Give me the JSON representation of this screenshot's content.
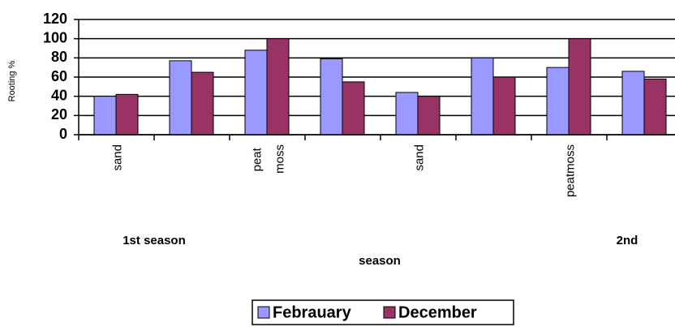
{
  "chart_data": {
    "type": "bar",
    "y_label": "Rooting %",
    "categories": [
      "sand",
      null,
      "peat moss",
      null,
      "sand",
      null,
      "peatmoss",
      null
    ],
    "series": [
      {
        "name": "Febrauary",
        "color": "#9999ff",
        "values": [
          40,
          77,
          88,
          79,
          44,
          80,
          70,
          66
        ]
      },
      {
        "name": "December",
        "color": "#993366",
        "values": [
          42,
          65,
          100,
          55,
          40,
          60,
          100,
          58
        ]
      }
    ],
    "ylim": [
      0,
      120
    ],
    "yticks": [
      0,
      20,
      40,
      60,
      80,
      100,
      120
    ],
    "grid": true,
    "annotations": [
      "1st  season",
      "2nd",
      "season"
    ]
  }
}
